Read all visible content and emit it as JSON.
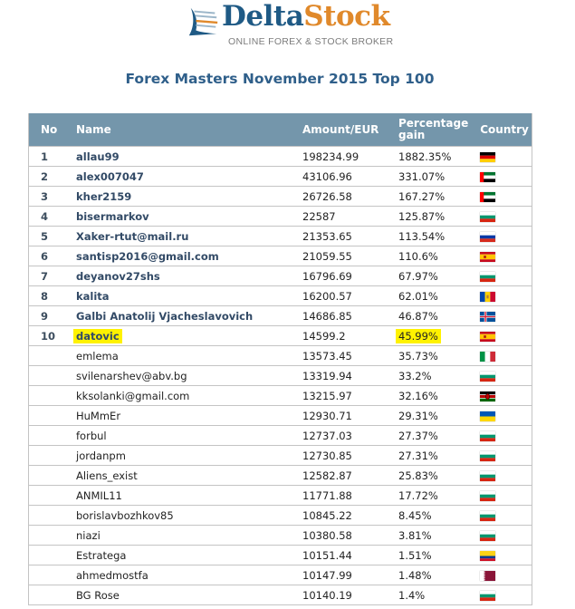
{
  "header": {
    "logo_part1": "Delta",
    "logo_part2": "Stock",
    "tagline": "ONLINE FOREX & STOCK BROKER"
  },
  "page_title": "Forex Masters November 2015 Top 100",
  "table": {
    "columns": [
      "No",
      "Name",
      "Amount/EUR",
      "Percentage gain",
      "Country"
    ],
    "column_pct_line1": "Percentage",
    "column_pct_line2": "gain",
    "rows": [
      {
        "no": "1",
        "name": "allau99",
        "amount": "198234.99",
        "gain": "1882.35%",
        "country": "Germany",
        "flag": "de",
        "top": true
      },
      {
        "no": "2",
        "name": "alex007047",
        "amount": "43106.96",
        "gain": "331.07%",
        "country": "United Arab Emirates",
        "flag": "ae",
        "top": true
      },
      {
        "no": "3",
        "name": "kher2159",
        "amount": "26726.58",
        "gain": "167.27%",
        "country": "United Arab Emirates",
        "flag": "ae",
        "top": true
      },
      {
        "no": "4",
        "name": "bisermarkov",
        "amount": "22587",
        "gain": "125.87%",
        "country": "Bulgaria",
        "flag": "bg",
        "top": true
      },
      {
        "no": "5",
        "name": "Xaker-rtut@mail.ru",
        "amount": "21353.65",
        "gain": "113.54%",
        "country": "Russia",
        "flag": "ru",
        "top": true
      },
      {
        "no": "6",
        "name": "santisp2016@gmail.com",
        "amount": "21059.55",
        "gain": "110.6%",
        "country": "Spain",
        "flag": "es",
        "top": true
      },
      {
        "no": "7",
        "name": "deyanov27shs",
        "amount": "16796.69",
        "gain": "67.97%",
        "country": "Bulgaria",
        "flag": "bg",
        "top": true
      },
      {
        "no": "8",
        "name": "kalita",
        "amount": "16200.57",
        "gain": "62.01%",
        "country": "Moldova",
        "flag": "md",
        "top": true
      },
      {
        "no": "9",
        "name": "Galbi Anatolij Vjacheslavovich",
        "amount": "14686.85",
        "gain": "46.87%",
        "country": "Iceland",
        "flag": "is",
        "top": true
      },
      {
        "no": "10",
        "name": "datovic",
        "amount": "14599.2",
        "gain": "45.99%",
        "country": "Spain",
        "flag": "es",
        "top": true,
        "highlight": true
      },
      {
        "no": "",
        "name": "emlema",
        "amount": "13573.45",
        "gain": "35.73%",
        "country": "Italy",
        "flag": "it"
      },
      {
        "no": "",
        "name": "svilenarshev@abv.bg",
        "amount": "13319.94",
        "gain": "33.2%",
        "country": "Bulgaria",
        "flag": "bg"
      },
      {
        "no": "",
        "name": "kksolanki@gmail.com",
        "amount": "13215.97",
        "gain": "32.16%",
        "country": "Kenya",
        "flag": "ke"
      },
      {
        "no": "",
        "name": "HuMmEr",
        "amount": "12930.71",
        "gain": "29.31%",
        "country": "Ukraine",
        "flag": "ua"
      },
      {
        "no": "",
        "name": "forbul",
        "amount": "12737.03",
        "gain": "27.37%",
        "country": "Bulgaria",
        "flag": "bg"
      },
      {
        "no": "",
        "name": "jordanpm",
        "amount": "12730.85",
        "gain": "27.31%",
        "country": "Bulgaria",
        "flag": "bg"
      },
      {
        "no": "",
        "name": "Aliens_exist",
        "amount": "12582.87",
        "gain": "25.83%",
        "country": "Bulgaria",
        "flag": "bg"
      },
      {
        "no": "",
        "name": "ANMIL11",
        "amount": "11771.88",
        "gain": "17.72%",
        "country": "Bulgaria",
        "flag": "bg"
      },
      {
        "no": "",
        "name": "borislavbozhkov85",
        "amount": "10845.22",
        "gain": "8.45%",
        "country": "Bulgaria",
        "flag": "bg"
      },
      {
        "no": "",
        "name": "niazi",
        "amount": "10380.58",
        "gain": "3.81%",
        "country": "Bulgaria",
        "flag": "bg"
      },
      {
        "no": "",
        "name": "Estratega",
        "amount": "10151.44",
        "gain": "1.51%",
        "country": "Colombia",
        "flag": "co"
      },
      {
        "no": "",
        "name": "ahmedmostfa",
        "amount": "10147.99",
        "gain": "1.48%",
        "country": "Qatar",
        "flag": "qa"
      },
      {
        "no": "",
        "name": "BG Rose",
        "amount": "10140.19",
        "gain": "1.4%",
        "country": "Bulgaria",
        "flag": "bg"
      }
    ]
  },
  "colors": {
    "header_bg": "#7496ab",
    "title": "#2f5f8a",
    "highlight": "#fff200",
    "logo_blue": "#1f5a85",
    "logo_orange": "#e0892b"
  }
}
